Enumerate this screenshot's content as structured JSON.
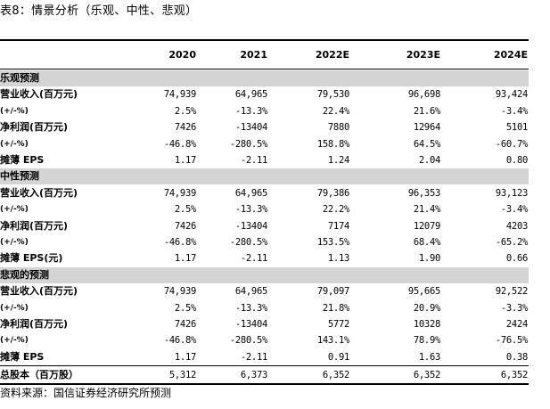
{
  "title": "表8：情景分析（乐观、中性、悲观）",
  "columns": [
    "2020",
    "2021",
    "2022E",
    "2023E",
    "2024E"
  ],
  "rows": [
    {
      "type": "section",
      "label": "乐观预测"
    },
    {
      "label": "营业收入(百万元)",
      "values": [
        "74,939",
        "64,965",
        "79,530",
        "96,698",
        "93,424"
      ]
    },
    {
      "label": "(+/-%)",
      "small": true,
      "values": [
        "2.5%",
        "-13.3%",
        "22.4%",
        "21.6%",
        "-3.4%"
      ]
    },
    {
      "label": "净利润(百万元)",
      "values": [
        "7426",
        "-13404",
        "7880",
        "12964",
        "5101"
      ]
    },
    {
      "label": "(+/-%)",
      "small": true,
      "values": [
        "-46.8%",
        "-280.5%",
        "158.8%",
        "64.5%",
        "-60.7%"
      ]
    },
    {
      "label": "摊薄 EPS",
      "values": [
        "1.17",
        "-2.11",
        "1.24",
        "2.04",
        "0.80"
      ]
    },
    {
      "type": "section",
      "label": "中性预测"
    },
    {
      "label": "营业收入(百万元)",
      "values": [
        "74,939",
        "64,965",
        "79,386",
        "96,353",
        "93,123"
      ]
    },
    {
      "label": "(+/-%)",
      "small": true,
      "values": [
        "2.5%",
        "-13.3%",
        "22.2%",
        "21.4%",
        "-3.4%"
      ]
    },
    {
      "label": "净利润(百万元)",
      "values": [
        "7426",
        "-13404",
        "7174",
        "12079",
        "4203"
      ]
    },
    {
      "label": "(+/-%)",
      "small": true,
      "values": [
        "-46.8%",
        "-280.5%",
        "153.5%",
        "68.4%",
        "-65.2%"
      ]
    },
    {
      "label": "摊薄 EPS(元)",
      "values": [
        "1.17",
        "-2.11",
        "1.13",
        "1.90",
        "0.66"
      ]
    },
    {
      "type": "section",
      "label": "悲观的预测"
    },
    {
      "label": "营业收入(百万元)",
      "values": [
        "74,939",
        "64,965",
        "79,097",
        "95,665",
        "92,522"
      ]
    },
    {
      "label": "(+/-%)",
      "small": true,
      "values": [
        "2.5%",
        "-13.3%",
        "21.8%",
        "20.9%",
        "-3.3%"
      ]
    },
    {
      "label": "净利润(百万元)",
      "values": [
        "7426",
        "-13404",
        "5772",
        "10328",
        "2424"
      ]
    },
    {
      "label": "(+/-%)",
      "small": true,
      "values": [
        "-46.8%",
        "-280.5%",
        "143.1%",
        "78.9%",
        "-76.5%"
      ]
    },
    {
      "label": "摊薄 EPS",
      "values": [
        "1.17",
        "-2.11",
        "0.91",
        "1.63",
        "0.38"
      ]
    },
    {
      "type": "total",
      "label": "总股本（百万股）",
      "values": [
        "5,312",
        "6,373",
        "6,352",
        "6,352",
        "6,352"
      ]
    }
  ],
  "source": "资料来源：国信证券经济研究所预测",
  "colors": {
    "section_bg": "#d4d4d4",
    "rule": "#000000"
  }
}
